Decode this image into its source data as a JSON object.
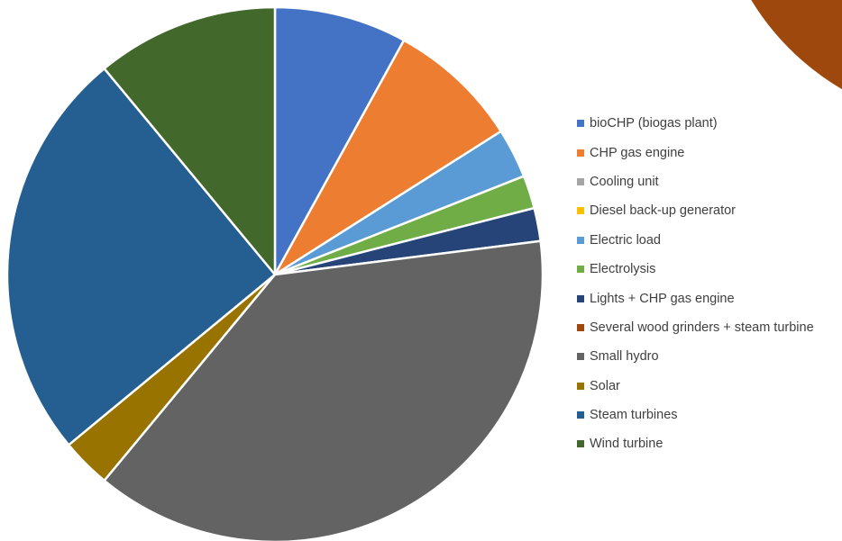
{
  "chart_data": [
    {
      "type": "pie",
      "series": [
        {
          "name": "bioCHP (biogas plant)",
          "value": 8,
          "color": "#4472C4"
        },
        {
          "name": "CHP gas engine",
          "value": 8,
          "color": "#ED7D31"
        },
        {
          "name": "Cooling unit",
          "value": 0,
          "color": "#A5A5A5"
        },
        {
          "name": "Diesel back-up generator",
          "value": 0,
          "color": "#FFC000"
        },
        {
          "name": "Electric load",
          "value": 3,
          "color": "#5B9BD5"
        },
        {
          "name": "Electrolysis",
          "value": 2,
          "color": "#70AD47"
        },
        {
          "name": "Lights + CHP gas engine",
          "value": 2,
          "color": "#264478"
        },
        {
          "name": "Several wood grinders + steam turbine",
          "value": 0,
          "color": "#9E480E"
        },
        {
          "name": "Small hydro",
          "value": 38,
          "color": "#636363"
        },
        {
          "name": "Solar",
          "value": 3,
          "color": "#997300"
        },
        {
          "name": "Steam turbines",
          "value": 25,
          "color": "#255E91"
        },
        {
          "name": "Wind turbine",
          "value": 11,
          "color": "#43682B"
        }
      ],
      "legend_position": "right"
    },
    {
      "type": "pie",
      "note_visible": "second pie chart partially visible at top-right edge",
      "series": [
        {
          "name": "Several wood grinders + steam turbine",
          "color": "#9E480E"
        },
        {
          "name": "Lights + CHP gas engine",
          "color": "#264478"
        }
      ]
    }
  ]
}
